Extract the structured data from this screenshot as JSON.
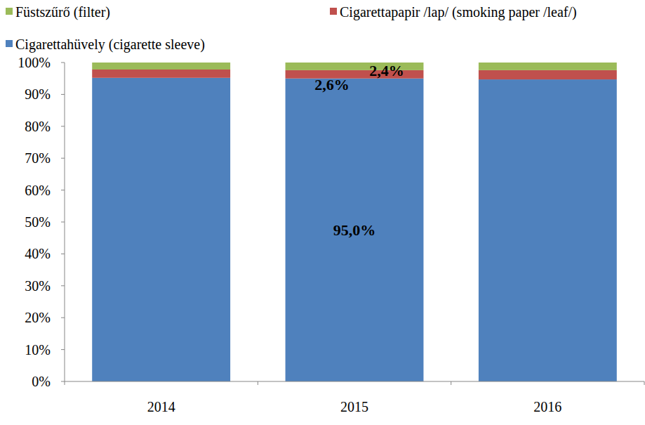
{
  "chart_data": {
    "type": "bar",
    "stacked": true,
    "grid": false,
    "legend": "top",
    "data_labels": true,
    "categories": [
      "2014",
      "2015",
      "2016"
    ],
    "series": [
      {
        "name": "Cigarettahüvely (cigarette sleeve)",
        "color": "#4f81bd",
        "values": [
          95.2,
          95.0,
          94.7
        ],
        "value_labels": [
          null,
          "95,0%",
          null
        ]
      },
      {
        "name": "Cigarettapapir /lap/ (smoking paper /leaf/)",
        "color": "#c0504d",
        "values": [
          2.6,
          2.6,
          2.9
        ],
        "value_labels": [
          null,
          "2,6%",
          null
        ]
      },
      {
        "name": "Füstszűrő (filter)",
        "color": "#9bbb59",
        "values": [
          2.2,
          2.4,
          2.4
        ],
        "value_labels": [
          null,
          "2,4%",
          null
        ]
      }
    ],
    "ylim": [
      0,
      100
    ],
    "yticks": [
      {
        "value": 0,
        "label": "0%"
      },
      {
        "value": 10,
        "label": "10%"
      },
      {
        "value": 20,
        "label": "20%"
      },
      {
        "value": 30,
        "label": "30%"
      },
      {
        "value": 40,
        "label": "40%"
      },
      {
        "value": 50,
        "label": "50%"
      },
      {
        "value": 60,
        "label": "60%"
      },
      {
        "value": 70,
        "label": "70%"
      },
      {
        "value": 80,
        "label": "80%"
      },
      {
        "value": 90,
        "label": "90%"
      },
      {
        "value": 100,
        "label": "100%"
      }
    ]
  }
}
